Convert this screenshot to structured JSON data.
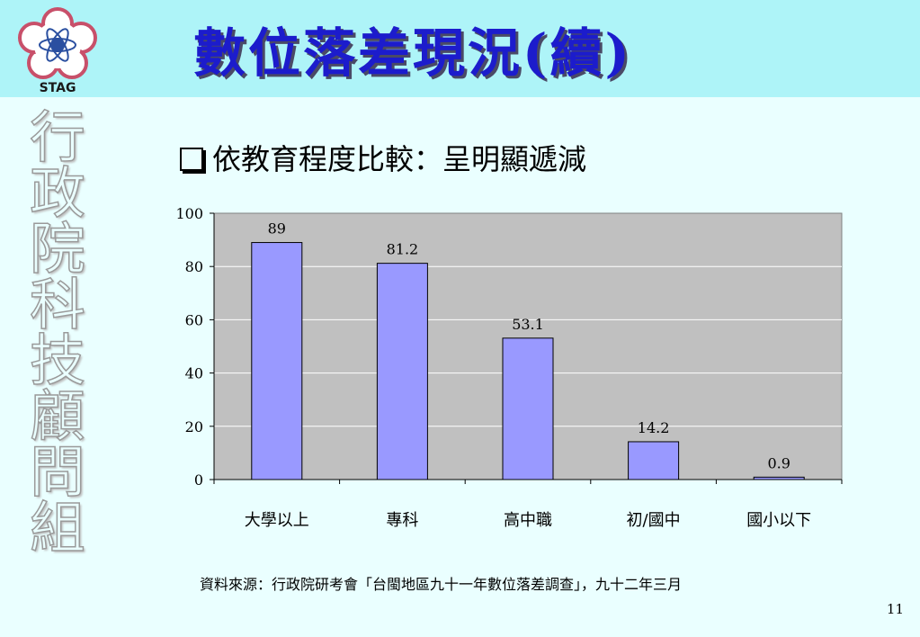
{
  "header": {
    "logo_text": "STAG",
    "title": "數位落差現況(續)"
  },
  "sidebar": {
    "vertical_text": [
      "行",
      "政",
      "院",
      "科",
      "技",
      "顧",
      "問",
      "組"
    ]
  },
  "slide": {
    "subtitle": "依教育程度比較：呈明顯遞減",
    "source": "資料來源：行政院研考會「台閩地區九十一年數位落差調查」，九十二年三月",
    "page_number": "11"
  },
  "chart_data": {
    "type": "bar",
    "categories": [
      "大學以上",
      "專科",
      "高中職",
      "初/國中",
      "國小以下"
    ],
    "values": [
      89,
      81.2,
      53.1,
      14.2,
      0.9
    ],
    "data_labels": [
      "89",
      "81.2",
      "53.1",
      "14.2",
      "0.9"
    ],
    "y_ticks": [
      "0",
      "20",
      "40",
      "60",
      "80",
      "100"
    ],
    "ylim": [
      0,
      100
    ],
    "grid": true,
    "bar_color": "#9999ff",
    "plot_background": "#c0c0c0"
  }
}
